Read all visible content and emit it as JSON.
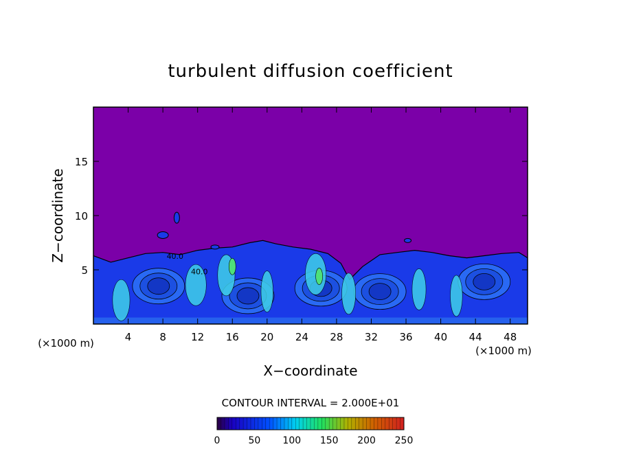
{
  "chart_data": {
    "type": "heatmap",
    "title": "turbulent diffusion coefficient",
    "xlabel": "X−coordinate",
    "ylabel": "Z−coordinate",
    "x_unit_left": "(×1000 m)",
    "x_unit_right": "(×1000 m)",
    "xlim": [
      0,
      50
    ],
    "ylim": [
      0,
      20
    ],
    "xticks": [
      4,
      8,
      12,
      16,
      20,
      24,
      28,
      32,
      36,
      40,
      44,
      48
    ],
    "yticks": [
      5,
      10,
      15
    ],
    "contour_interval_text": "CONTOUR INTERVAL = 2.000E+01",
    "colorbar": {
      "min": 0,
      "max": 250,
      "ticks": [
        0,
        50,
        100,
        150,
        200,
        250
      ]
    },
    "contour_labels": [
      {
        "text": "40.0",
        "x": 9.4,
        "z": 6.0
      },
      {
        "text": "40.0",
        "x": 12.2,
        "z": 4.6
      }
    ],
    "background_color": "#7b00a8",
    "turbulent_layer_color": "#1a3ae8",
    "eddy_centers": [
      {
        "x": 7.5,
        "z": 3.5
      },
      {
        "x": 17.8,
        "z": 2.6
      },
      {
        "x": 26.2,
        "z": 3.3
      },
      {
        "x": 33.0,
        "z": 3.0
      },
      {
        "x": 45.0,
        "z": 3.9
      }
    ]
  }
}
